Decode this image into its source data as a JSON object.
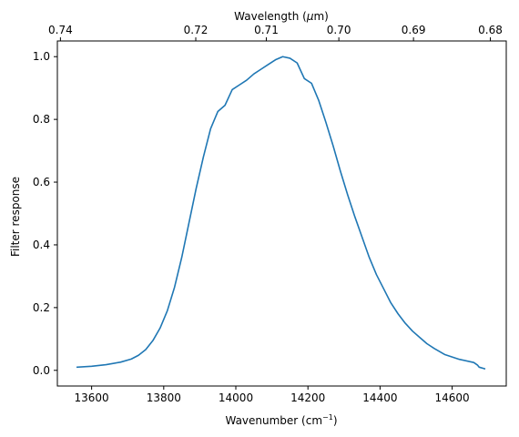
{
  "chart_data": {
    "type": "line",
    "xlabel": "Wavenumber (cm",
    "xlabel_superscript": "−1",
    "xlabel_suffix": ")",
    "ylabel": "Filter response",
    "top_xlabel_prefix": "Wavelength (",
    "top_xlabel_mu": "μ",
    "top_xlabel_suffix": "m)",
    "xlim": [
      13505,
      14750
    ],
    "ylim": [
      -0.05,
      1.05
    ],
    "xticks": [
      13600,
      13800,
      14000,
      14200,
      14400,
      14600
    ],
    "yticks": [
      0.0,
      0.2,
      0.4,
      0.6,
      0.8,
      1.0
    ],
    "top_ticks": [
      0.74,
      0.72,
      0.71,
      0.7,
      0.69,
      0.68
    ],
    "top_tick_labels": [
      "0.74",
      "0.72",
      "0.71",
      "0.70",
      "0.69",
      "0.68"
    ],
    "grid": false,
    "line_color": "#1f77b4",
    "series": [
      {
        "x": [
          13560,
          13600,
          13640,
          13680,
          13710,
          13730,
          13750,
          13770,
          13790,
          13810,
          13830,
          13850,
          13870,
          13890,
          13910,
          13930,
          13950,
          13970,
          13990,
          14010,
          14030,
          14050,
          14070,
          14090,
          14110,
          14130,
          14150,
          14170,
          14190,
          14210,
          14230,
          14250,
          14270,
          14290,
          14310,
          14330,
          14350,
          14370,
          14390,
          14410,
          14430,
          14450,
          14470,
          14490,
          14510,
          14530,
          14550,
          14580,
          14620,
          14660,
          14670,
          14675,
          14690
        ],
        "y": [
          0.01,
          0.013,
          0.018,
          0.026,
          0.036,
          0.048,
          0.066,
          0.095,
          0.135,
          0.19,
          0.265,
          0.36,
          0.47,
          0.58,
          0.68,
          0.77,
          0.825,
          0.845,
          0.895,
          0.91,
          0.925,
          0.945,
          0.96,
          0.975,
          0.99,
          1.0,
          0.995,
          0.98,
          0.93,
          0.915,
          0.86,
          0.79,
          0.715,
          0.635,
          0.56,
          0.49,
          0.425,
          0.36,
          0.305,
          0.26,
          0.215,
          0.18,
          0.15,
          0.125,
          0.105,
          0.085,
          0.07,
          0.05,
          0.035,
          0.025,
          0.017,
          0.01,
          0.005
        ]
      }
    ]
  }
}
